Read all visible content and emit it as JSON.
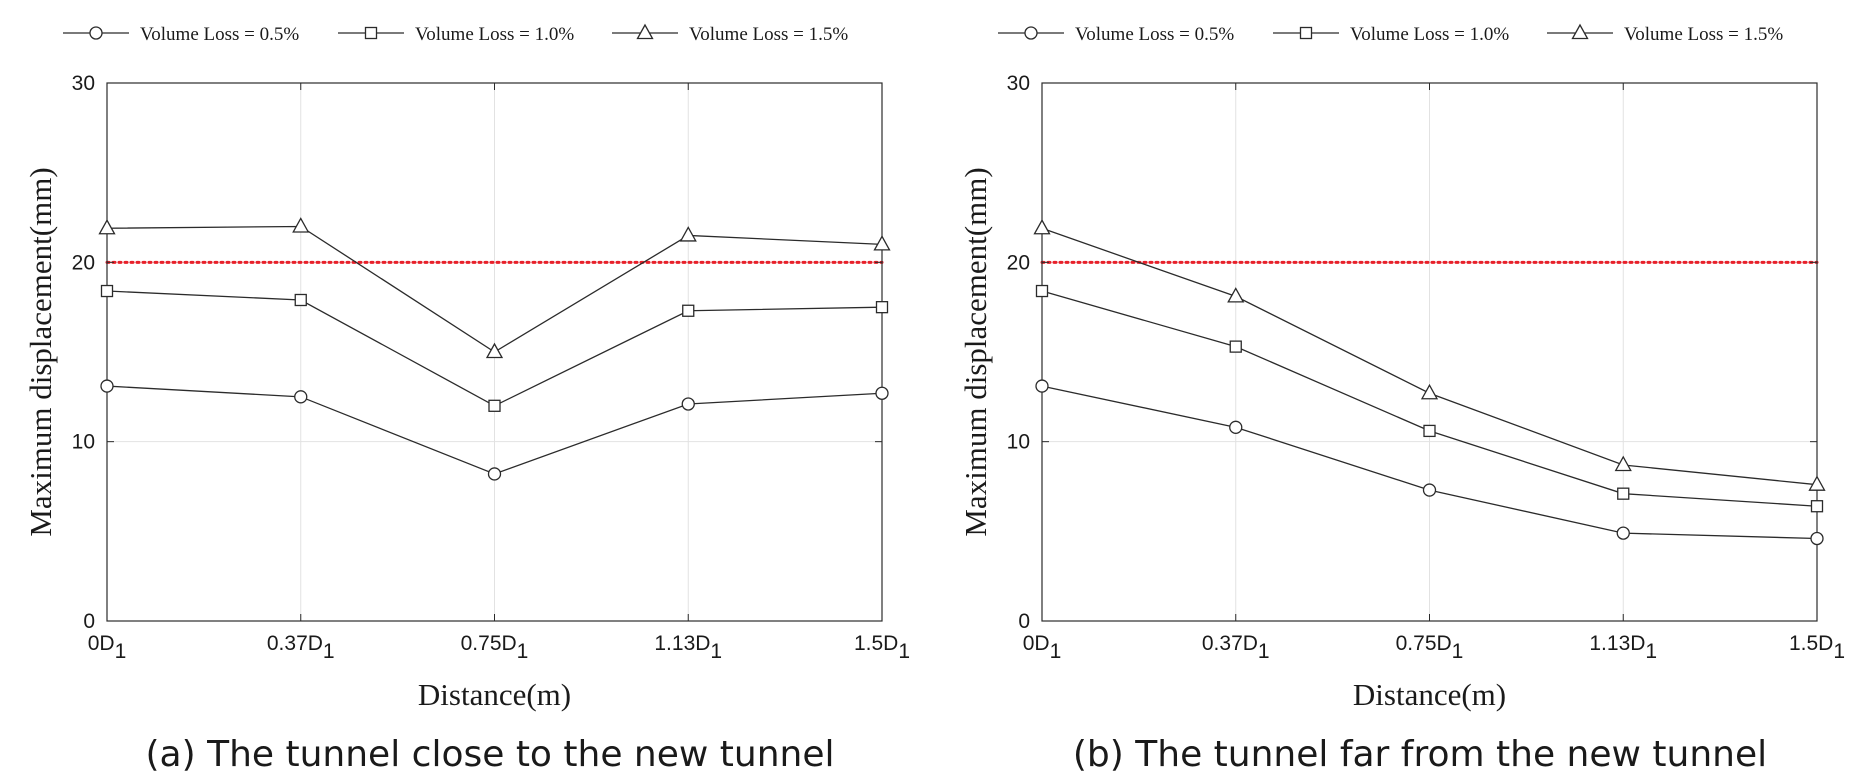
{
  "chart_data": [
    {
      "type": "line",
      "caption": "(a) The tunnel close to the new tunnel",
      "categories": [
        {
          "main": "0D",
          "sub": "1"
        },
        {
          "main": "0.37D",
          "sub": "1"
        },
        {
          "main": "0.75D",
          "sub": "1"
        },
        {
          "main": "1.13D",
          "sub": "1"
        },
        {
          "main": "1.5D",
          "sub": "1"
        }
      ],
      "xlabel": "Distance(m)",
      "ylabel": "Maximum displacement(mm)",
      "ylim": [
        0,
        30
      ],
      "yticks": [
        "0",
        "10",
        "20",
        "30"
      ],
      "grid": true,
      "legend": "top",
      "reference_line": {
        "y": 20,
        "color": "#e8202a",
        "style": "dotted"
      },
      "series": [
        {
          "name": "Volume Loss = 0.5%",
          "marker": "circle",
          "values": [
            13.1,
            12.5,
            8.2,
            12.1,
            12.7
          ]
        },
        {
          "name": "Volume Loss = 1.0%",
          "marker": "square",
          "values": [
            18.4,
            17.9,
            12.0,
            17.3,
            17.5
          ]
        },
        {
          "name": "Volume Loss = 1.5%",
          "marker": "triangle",
          "values": [
            21.9,
            22.0,
            15.0,
            21.5,
            21.0
          ]
        }
      ]
    },
    {
      "type": "line",
      "caption": "(b) The tunnel far from the new tunnel",
      "categories": [
        {
          "main": "0D",
          "sub": "1"
        },
        {
          "main": "0.37D",
          "sub": "1"
        },
        {
          "main": "0.75D",
          "sub": "1"
        },
        {
          "main": "1.13D",
          "sub": "1"
        },
        {
          "main": "1.5D",
          "sub": "1"
        }
      ],
      "xlabel": "Distance(m)",
      "ylabel": "Maximum displacement(mm)",
      "ylim": [
        0,
        30
      ],
      "yticks": [
        "0",
        "10",
        "20",
        "30"
      ],
      "grid": true,
      "legend": "top",
      "reference_line": {
        "y": 20,
        "color": "#e8202a",
        "style": "dotted"
      },
      "series": [
        {
          "name": "Volume Loss = 0.5%",
          "marker": "circle",
          "values": [
            13.1,
            10.8,
            7.3,
            4.9,
            4.6
          ]
        },
        {
          "name": "Volume Loss = 1.0%",
          "marker": "square",
          "values": [
            18.4,
            15.3,
            10.6,
            7.1,
            6.4
          ]
        },
        {
          "name": "Volume Loss = 1.5%",
          "marker": "triangle",
          "values": [
            21.9,
            18.1,
            12.7,
            8.7,
            7.6
          ]
        }
      ]
    }
  ],
  "colors": {
    "line": "#2b2b2b",
    "grid": "#e2e2e2",
    "axis": "#2b2b2b",
    "reference": "#e8202a"
  }
}
